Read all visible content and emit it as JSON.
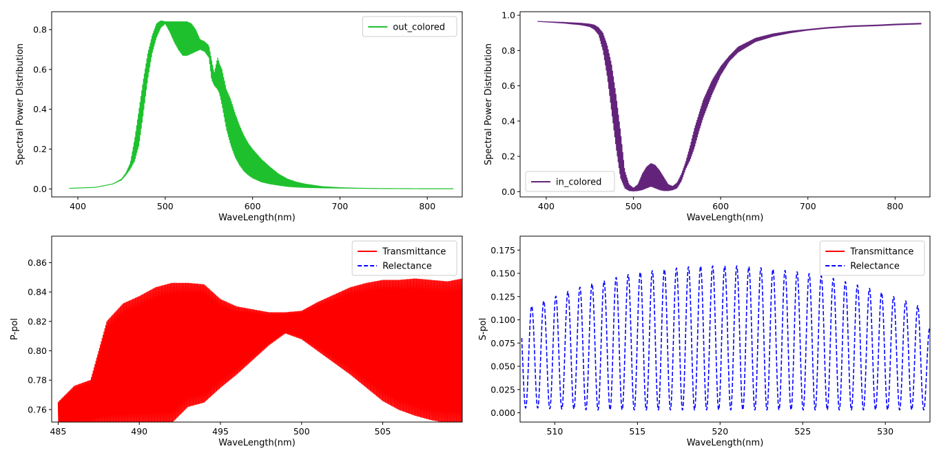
{
  "colors": {
    "out_colored": "#1ec12d",
    "in_colored": "#63237b",
    "transmittance": "#ff0000",
    "relectance": "#0000ff"
  },
  "chart_data": [
    {
      "type": "line",
      "xlabel": "WaveLength(nm)",
      "ylabel": "Spectral Power Distribution",
      "xlim": [
        370,
        840
      ],
      "ylim": [
        -0.04,
        0.89
      ],
      "xticks": [
        400,
        500,
        600,
        700,
        800
      ],
      "yticks": [
        0.0,
        0.2,
        0.4,
        0.6,
        0.8
      ],
      "ytick_labels": [
        "0.0",
        "0.2",
        "0.4",
        "0.6",
        "0.8"
      ],
      "legend_position": "top-right",
      "series": [
        {
          "name": "out_colored",
          "color": "#1ec12d",
          "style": "solid",
          "oscillation_band": [
            [
              455,
              480
            ],
            [
              595,
              640
            ]
          ],
          "x": [
            390,
            420,
            440,
            450,
            455,
            460,
            465,
            470,
            475,
            480,
            485,
            490,
            495,
            500,
            505,
            510,
            515,
            520,
            525,
            530,
            535,
            540,
            545,
            550,
            553,
            556,
            560,
            562,
            565,
            570,
            575,
            580,
            585,
            590,
            595,
            600,
            610,
            620,
            630,
            640,
            650,
            660,
            680,
            700,
            720,
            750,
            800,
            830
          ],
          "upper": [
            0.003,
            0.008,
            0.025,
            0.05,
            0.08,
            0.13,
            0.25,
            0.4,
            0.55,
            0.68,
            0.77,
            0.83,
            0.845,
            0.84,
            0.84,
            0.84,
            0.84,
            0.84,
            0.84,
            0.83,
            0.8,
            0.75,
            0.74,
            0.72,
            0.65,
            0.58,
            0.66,
            0.63,
            0.6,
            0.5,
            0.45,
            0.38,
            0.32,
            0.27,
            0.23,
            0.2,
            0.15,
            0.11,
            0.075,
            0.05,
            0.035,
            0.025,
            0.012,
            0.007,
            0.004,
            0.002,
            0.001,
            0.001
          ],
          "lower": [
            0.003,
            0.008,
            0.025,
            0.045,
            0.07,
            0.1,
            0.14,
            0.22,
            0.38,
            0.55,
            0.68,
            0.76,
            0.81,
            0.83,
            0.79,
            0.74,
            0.7,
            0.67,
            0.67,
            0.68,
            0.69,
            0.7,
            0.69,
            0.66,
            0.55,
            0.52,
            0.5,
            0.48,
            0.42,
            0.3,
            0.22,
            0.16,
            0.12,
            0.09,
            0.07,
            0.055,
            0.035,
            0.025,
            0.018,
            0.012,
            0.009,
            0.007,
            0.005,
            0.004,
            0.003,
            0.002,
            0.001,
            0.001
          ]
        }
      ]
    },
    {
      "type": "line",
      "xlabel": "WaveLength(nm)",
      "ylabel": "Spectral Power Distribution",
      "xlim": [
        370,
        840
      ],
      "ylim": [
        -0.03,
        1.02
      ],
      "xticks": [
        400,
        500,
        600,
        700,
        800
      ],
      "yticks": [
        0.0,
        0.2,
        0.4,
        0.6,
        0.8,
        1.0
      ],
      "ytick_labels": [
        "0.0",
        "0.2",
        "0.4",
        "0.6",
        "0.8",
        "1.0"
      ],
      "legend_position": "bottom-left",
      "series": [
        {
          "name": "in_colored",
          "color": "#63237b",
          "style": "solid",
          "x": [
            390,
            420,
            440,
            450,
            455,
            460,
            465,
            470,
            475,
            480,
            485,
            490,
            495,
            500,
            505,
            510,
            515,
            520,
            525,
            530,
            535,
            540,
            545,
            550,
            555,
            560,
            565,
            570,
            575,
            580,
            590,
            600,
            610,
            620,
            640,
            660,
            680,
            700,
            720,
            750,
            780,
            800,
            830
          ],
          "upper": [
            0.965,
            0.96,
            0.955,
            0.95,
            0.945,
            0.93,
            0.9,
            0.83,
            0.72,
            0.55,
            0.35,
            0.12,
            0.04,
            0.02,
            0.04,
            0.1,
            0.14,
            0.16,
            0.15,
            0.12,
            0.08,
            0.04,
            0.03,
            0.05,
            0.1,
            0.17,
            0.26,
            0.36,
            0.44,
            0.52,
            0.63,
            0.71,
            0.77,
            0.82,
            0.87,
            0.895,
            0.91,
            0.92,
            0.93,
            0.94,
            0.945,
            0.95,
            0.955
          ],
          "lower": [
            0.965,
            0.955,
            0.945,
            0.935,
            0.92,
            0.89,
            0.8,
            0.65,
            0.45,
            0.25,
            0.08,
            0.02,
            0.005,
            0.003,
            0.005,
            0.01,
            0.02,
            0.03,
            0.02,
            0.01,
            0.005,
            0.005,
            0.01,
            0.02,
            0.06,
            0.13,
            0.18,
            0.25,
            0.34,
            0.42,
            0.55,
            0.66,
            0.74,
            0.79,
            0.85,
            0.88,
            0.9,
            0.915,
            0.925,
            0.935,
            0.94,
            0.945,
            0.95
          ]
        }
      ]
    },
    {
      "type": "line",
      "xlabel": "WaveLength(nm)",
      "ylabel": "P-pol",
      "xlim": [
        484.6,
        509.9
      ],
      "ylim": [
        0.7515,
        0.878
      ],
      "xticks": [
        485,
        490,
        495,
        500,
        505
      ],
      "yticks": [
        0.76,
        0.78,
        0.8,
        0.82,
        0.84,
        0.86
      ],
      "ytick_labels": [
        "0.76",
        "0.78",
        "0.80",
        "0.82",
        "0.84",
        "0.86"
      ],
      "legend_position": "top-right",
      "series": [
        {
          "name": "Transmittance",
          "color": "#ff0000",
          "style": "solid",
          "x": [
            485,
            486,
            487,
            488,
            489,
            490,
            491,
            492,
            493,
            494,
            495,
            496,
            497,
            498,
            499,
            500,
            501,
            502,
            503,
            504,
            505,
            506,
            507,
            508,
            509,
            509.9
          ],
          "upper": [
            0.765,
            0.776,
            0.78,
            0.82,
            0.832,
            0.837,
            0.843,
            0.846,
            0.846,
            0.845,
            0.835,
            0.83,
            0.828,
            0.826,
            0.826,
            0.827,
            0.833,
            0.838,
            0.843,
            0.846,
            0.848,
            0.848,
            0.849,
            0.848,
            0.847,
            0.849
          ],
          "lower": [
            0.751,
            0.751,
            0.751,
            0.751,
            0.751,
            0.751,
            0.751,
            0.751,
            0.762,
            0.765,
            0.775,
            0.784,
            0.794,
            0.804,
            0.812,
            0.808,
            0.8,
            0.792,
            0.784,
            0.775,
            0.766,
            0.76,
            0.756,
            0.753,
            0.751,
            0.751
          ]
        },
        {
          "name": "Relectance",
          "color": "#0000ff",
          "style": "dashed"
        }
      ]
    },
    {
      "type": "line",
      "xlabel": "WaveLength(nm)",
      "ylabel": "S-pol",
      "xlim": [
        507.9,
        532.7
      ],
      "ylim": [
        -0.01,
        0.19
      ],
      "xticks": [
        510,
        515,
        520,
        525,
        530
      ],
      "yticks": [
        0.0,
        0.025,
        0.05,
        0.075,
        0.1,
        0.125,
        0.15,
        0.175
      ],
      "ytick_labels": [
        "0.000",
        "0.025",
        "0.050",
        "0.075",
        "0.100",
        "0.125",
        "0.150",
        "0.175"
      ],
      "legend_position": "top-right",
      "series": [
        {
          "name": "Transmittance",
          "color": "#ff0000",
          "style": "solid"
        },
        {
          "name": "Relectance",
          "color": "#0000ff",
          "style": "dashed",
          "x": [
            508,
            509,
            510,
            511,
            512,
            513,
            514,
            515,
            516,
            517,
            518,
            519,
            520,
            521,
            522,
            523,
            524,
            525,
            526,
            527,
            528,
            529,
            530,
            531,
            532,
            532.7
          ],
          "upper": [
            0.11,
            0.118,
            0.125,
            0.132,
            0.138,
            0.142,
            0.147,
            0.151,
            0.153,
            0.155,
            0.157,
            0.158,
            0.158,
            0.158,
            0.157,
            0.155,
            0.153,
            0.151,
            0.148,
            0.144,
            0.139,
            0.134,
            0.128,
            0.122,
            0.115,
            0.09
          ],
          "lower": [
            0.005,
            0.005,
            0.004,
            0.004,
            0.003,
            0.003,
            0.003,
            0.003,
            0.003,
            0.003,
            0.003,
            0.003,
            0.003,
            0.003,
            0.003,
            0.003,
            0.003,
            0.003,
            0.003,
            0.003,
            0.003,
            0.003,
            0.003,
            0.003,
            0.003,
            0.003
          ]
        }
      ]
    }
  ]
}
